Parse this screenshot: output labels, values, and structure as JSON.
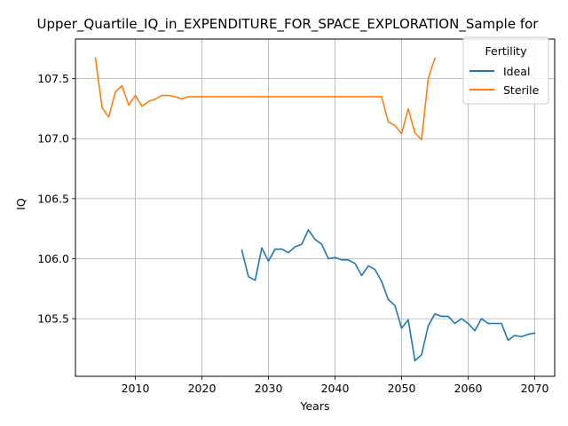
{
  "chart_data": {
    "type": "line",
    "title": "Upper_Quartile_IQ_in_EXPENDITURE_FOR_SPACE_EXPLORATION_Sample for",
    "xlabel": "Years",
    "ylabel": "IQ",
    "xlim": [
      2001,
      2073
    ],
    "ylim": [
      105.02,
      107.83
    ],
    "xticks": [
      2010,
      2020,
      2030,
      2040,
      2050,
      2060,
      2070
    ],
    "yticks": [
      105.5,
      106.0,
      106.5,
      107.0,
      107.5
    ],
    "xtick_labels": [
      "2010",
      "2020",
      "2030",
      "2040",
      "2050",
      "2060",
      "2070"
    ],
    "ytick_labels": [
      "105.5",
      "106.0",
      "106.5",
      "107.0",
      "107.5"
    ],
    "grid": true,
    "legend": {
      "title": "Fertility",
      "placement": "top-right"
    },
    "series": [
      {
        "name": "Ideal",
        "color": "#1f77b4",
        "x": [
          2026,
          2027,
          2028,
          2029,
          2030,
          2031,
          2032,
          2033,
          2034,
          2035,
          2036,
          2037,
          2038,
          2039,
          2040,
          2041,
          2042,
          2043,
          2044,
          2045,
          2046,
          2047,
          2048,
          2049,
          2050,
          2051,
          2052,
          2053,
          2054,
          2055,
          2056,
          2057,
          2058,
          2059,
          2060,
          2061,
          2062,
          2063,
          2064,
          2065,
          2066,
          2067,
          2068,
          2069,
          2070
        ],
        "y": [
          106.07,
          105.85,
          105.82,
          106.09,
          105.98,
          106.08,
          106.08,
          106.05,
          106.1,
          106.12,
          106.24,
          106.16,
          106.12,
          106.0,
          106.01,
          105.99,
          105.99,
          105.96,
          105.86,
          105.94,
          105.91,
          105.81,
          105.66,
          105.61,
          105.42,
          105.49,
          105.15,
          105.2,
          105.44,
          105.54,
          105.52,
          105.52,
          105.46,
          105.5,
          105.46,
          105.4,
          105.5,
          105.46,
          105.46,
          105.46,
          105.32,
          105.36,
          105.35,
          105.37,
          105.38
        ]
      },
      {
        "name": "Sterile",
        "color": "#ff7f0e",
        "x": [
          2004,
          2005,
          2006,
          2007,
          2008,
          2009,
          2010,
          2011,
          2012,
          2013,
          2014,
          2015,
          2016,
          2017,
          2018,
          2019,
          2020,
          2025,
          2030,
          2035,
          2040,
          2045,
          2046,
          2047,
          2048,
          2049,
          2050,
          2051,
          2052,
          2053,
          2054,
          2055
        ],
        "y": [
          107.67,
          107.26,
          107.18,
          107.39,
          107.44,
          107.28,
          107.36,
          107.27,
          107.31,
          107.33,
          107.36,
          107.36,
          107.35,
          107.33,
          107.35,
          107.35,
          107.35,
          107.35,
          107.35,
          107.35,
          107.35,
          107.35,
          107.35,
          107.35,
          107.14,
          107.11,
          107.04,
          107.25,
          107.05,
          106.99,
          107.5,
          107.67
        ]
      }
    ]
  }
}
